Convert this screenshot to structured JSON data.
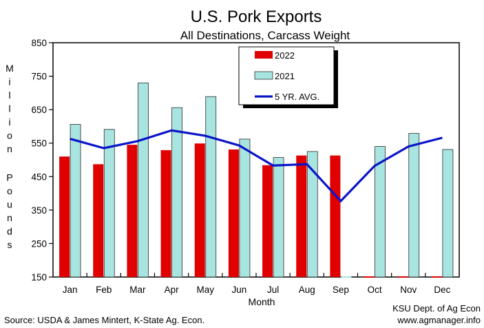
{
  "chart_data": {
    "type": "bar",
    "title": "U.S. Pork Exports",
    "subtitle": "All Destinations, Carcass Weight",
    "xlabel": "Month",
    "ylabel": "Million Pounds",
    "ylim": [
      150,
      850
    ],
    "yticks": [
      150,
      250,
      350,
      450,
      550,
      650,
      750,
      850
    ],
    "grid": false,
    "legend_position": "top-center",
    "categories": [
      "Jan",
      "Feb",
      "Mar",
      "Apr",
      "May",
      "Jun",
      "Jul",
      "Aug",
      "Sep",
      "Oct",
      "Nov",
      "Dec"
    ],
    "series": [
      {
        "name": "2022",
        "kind": "bar",
        "color": "#e00000",
        "values": [
          510,
          487,
          545,
          529,
          549,
          531,
          484,
          513,
          513,
          null,
          null,
          null
        ]
      },
      {
        "name": "2021",
        "kind": "bar",
        "color": "#a8e4e0",
        "values": [
          606,
          591,
          730,
          656,
          689,
          562,
          507,
          525,
          null,
          540,
          579,
          531
        ]
      },
      {
        "name": "5 YR. AVG.",
        "kind": "line",
        "color": "#0a14c8",
        "values": [
          563,
          535,
          556,
          588,
          572,
          543,
          483,
          487,
          377,
          482,
          540,
          566
        ]
      }
    ]
  },
  "footer": {
    "source": "Source:  USDA & James Mintert, K-State Ag. Econ.",
    "credit_line1": "KSU Dept. of Ag Econ",
    "credit_line2": "www.agmanager.info"
  }
}
